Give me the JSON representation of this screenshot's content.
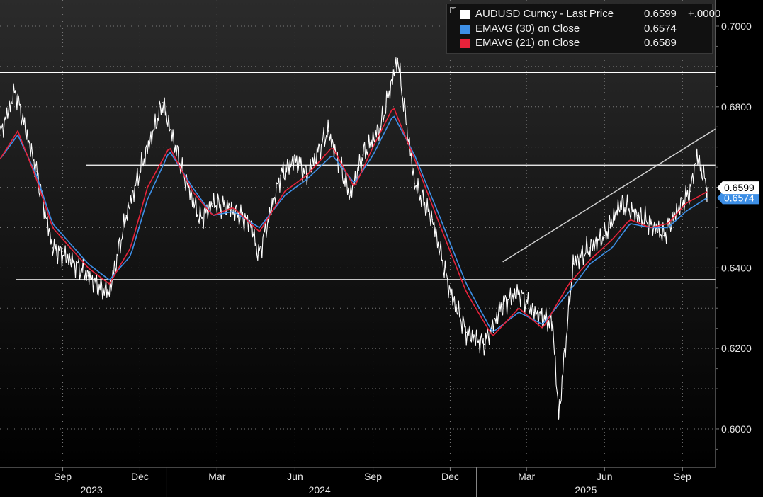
{
  "legend": {
    "collapse_glyph": "−",
    "items": [
      {
        "label": "AUDUSD Curncy - Last Price",
        "value": "0.6599",
        "change": "+.0000",
        "color": "#ffffff"
      },
      {
        "label": "EMAVG (30)  on Close",
        "value": "0.6574",
        "change": "",
        "color": "#3d8fe6"
      },
      {
        "label": "EMAVG (21)  on Close",
        "value": "0.6589",
        "change": "",
        "color": "#e8223a"
      }
    ]
  },
  "price_tags": {
    "last": {
      "text": "0.6599",
      "value": 0.6599,
      "background": "#ffffff",
      "color": "#000000"
    },
    "ema30": {
      "text": "0.6574",
      "value": 0.6574,
      "background": "#3d8fe6",
      "color": "#ffffff"
    }
  },
  "chart_data": {
    "type": "line",
    "title": "",
    "xlabel": "",
    "ylabel": "",
    "ylim": [
      0.5905,
      0.7065
    ],
    "y_ticks": [
      {
        "label": "0.7000",
        "value": 0.7
      },
      {
        "label": "0.6800",
        "value": 0.68
      },
      {
        "label": "0.6400",
        "value": 0.64
      },
      {
        "label": "0.6200",
        "value": 0.62
      },
      {
        "label": "0.6000",
        "value": 0.6
      }
    ],
    "x_ticks": [
      {
        "label": "Sep",
        "date": "2023-09-01"
      },
      {
        "label": "Dec",
        "date": "2023-12-01"
      },
      {
        "label": "Mar",
        "date": "2024-03-01"
      },
      {
        "label": "Jun",
        "date": "2024-06-01"
      },
      {
        "label": "Sep",
        "date": "2024-09-01"
      },
      {
        "label": "Dec",
        "date": "2024-12-01"
      },
      {
        "label": "Mar",
        "date": "2025-03-01"
      },
      {
        "label": "Jun",
        "date": "2025-06-01"
      },
      {
        "label": "Sep",
        "date": "2025-09-01"
      }
    ],
    "years": [
      {
        "label": "2023",
        "date": "2023-10-05"
      },
      {
        "label": "2024",
        "date": "2024-06-30"
      },
      {
        "label": "2025",
        "date": "2025-05-10"
      }
    ],
    "year_separators": [
      "2024-01-01",
      "2025-01-01"
    ],
    "x_range": [
      "2023-06-19",
      "2025-10-10"
    ],
    "grid": true,
    "legend_position": "top-right",
    "series": [
      {
        "name": "AUDUSD Curncy - Last Price",
        "color": "#ffffff",
        "x": [
          "2023-06-19",
          "2023-07-07",
          "2023-08-01",
          "2023-08-20",
          "2023-09-10",
          "2023-10-01",
          "2023-10-15",
          "2023-10-26",
          "2023-11-15",
          "2023-12-01",
          "2023-12-28",
          "2024-01-20",
          "2024-02-10",
          "2024-02-25",
          "2024-03-15",
          "2024-04-10",
          "2024-04-19",
          "2024-05-15",
          "2024-06-01",
          "2024-06-15",
          "2024-07-10",
          "2024-08-05",
          "2024-08-20",
          "2024-09-10",
          "2024-09-30",
          "2024-10-20",
          "2024-11-10",
          "2024-12-01",
          "2024-12-20",
          "2025-01-10",
          "2025-02-01",
          "2025-02-20",
          "2025-03-10",
          "2025-04-01",
          "2025-04-08",
          "2025-04-25",
          "2025-05-15",
          "2025-06-01",
          "2025-06-20",
          "2025-07-10",
          "2025-07-25",
          "2025-08-10",
          "2025-08-25",
          "2025-09-10",
          "2025-09-18",
          "2025-09-30"
        ],
        "values": [
          0.673,
          0.684,
          0.664,
          0.645,
          0.642,
          0.638,
          0.635,
          0.634,
          0.653,
          0.664,
          0.681,
          0.664,
          0.652,
          0.656,
          0.655,
          0.651,
          0.643,
          0.663,
          0.667,
          0.663,
          0.674,
          0.658,
          0.668,
          0.675,
          0.692,
          0.661,
          0.652,
          0.634,
          0.624,
          0.621,
          0.631,
          0.634,
          0.629,
          0.626,
          0.603,
          0.641,
          0.645,
          0.648,
          0.656,
          0.653,
          0.651,
          0.648,
          0.654,
          0.659,
          0.668,
          0.6599
        ]
      },
      {
        "name": "EMAVG (30) on Close",
        "color": "#3d8fe6",
        "x": [
          "2023-06-19",
          "2023-07-10",
          "2023-08-01",
          "2023-08-20",
          "2023-09-10",
          "2023-10-01",
          "2023-10-26",
          "2023-11-20",
          "2023-12-10",
          "2024-01-05",
          "2024-02-01",
          "2024-02-25",
          "2024-03-20",
          "2024-04-20",
          "2024-05-20",
          "2024-06-15",
          "2024-07-15",
          "2024-08-10",
          "2024-09-01",
          "2024-09-25",
          "2024-10-20",
          "2024-11-20",
          "2024-12-20",
          "2025-01-20",
          "2025-02-20",
          "2025-03-20",
          "2025-04-20",
          "2025-05-15",
          "2025-06-10",
          "2025-07-01",
          "2025-07-25",
          "2025-08-15",
          "2025-09-05",
          "2025-09-30"
        ],
        "values": [
          0.667,
          0.673,
          0.663,
          0.651,
          0.646,
          0.641,
          0.637,
          0.643,
          0.657,
          0.669,
          0.66,
          0.653,
          0.654,
          0.65,
          0.658,
          0.662,
          0.668,
          0.661,
          0.668,
          0.678,
          0.668,
          0.652,
          0.636,
          0.624,
          0.629,
          0.626,
          0.634,
          0.641,
          0.645,
          0.651,
          0.65,
          0.65,
          0.654,
          0.6574
        ]
      },
      {
        "name": "EMAVG (21) on Close",
        "color": "#e8223a",
        "x": [
          "2023-06-19",
          "2023-07-10",
          "2023-08-01",
          "2023-08-20",
          "2023-09-10",
          "2023-10-01",
          "2023-10-26",
          "2023-11-20",
          "2023-12-10",
          "2024-01-05",
          "2024-02-01",
          "2024-02-25",
          "2024-03-20",
          "2024-04-20",
          "2024-05-20",
          "2024-06-15",
          "2024-07-15",
          "2024-08-10",
          "2024-09-01",
          "2024-09-25",
          "2024-10-20",
          "2024-11-20",
          "2024-12-20",
          "2025-01-20",
          "2025-02-20",
          "2025-03-20",
          "2025-04-20",
          "2025-05-15",
          "2025-06-10",
          "2025-07-01",
          "2025-07-25",
          "2025-08-15",
          "2025-09-05",
          "2025-09-30"
        ],
        "values": [
          0.667,
          0.674,
          0.662,
          0.65,
          0.645,
          0.64,
          0.636,
          0.645,
          0.66,
          0.67,
          0.659,
          0.653,
          0.655,
          0.649,
          0.659,
          0.663,
          0.67,
          0.66,
          0.67,
          0.68,
          0.667,
          0.65,
          0.634,
          0.623,
          0.63,
          0.625,
          0.636,
          0.642,
          0.647,
          0.652,
          0.65,
          0.651,
          0.656,
          0.6589
        ]
      }
    ],
    "reference_lines": [
      {
        "type": "horizontal",
        "value": 0.6885,
        "color": "#ffffff"
      },
      {
        "type": "horizontal",
        "value": 0.6655,
        "color": "#ffffff"
      },
      {
        "type": "horizontal",
        "value": 0.6371,
        "color": "#ffffff"
      },
      {
        "type": "trendline",
        "from": {
          "date": "2025-02-01",
          "value": 0.6415
        },
        "to": {
          "date": "2025-10-10",
          "value": 0.6745
        },
        "color": "#cfcfcf"
      }
    ]
  }
}
